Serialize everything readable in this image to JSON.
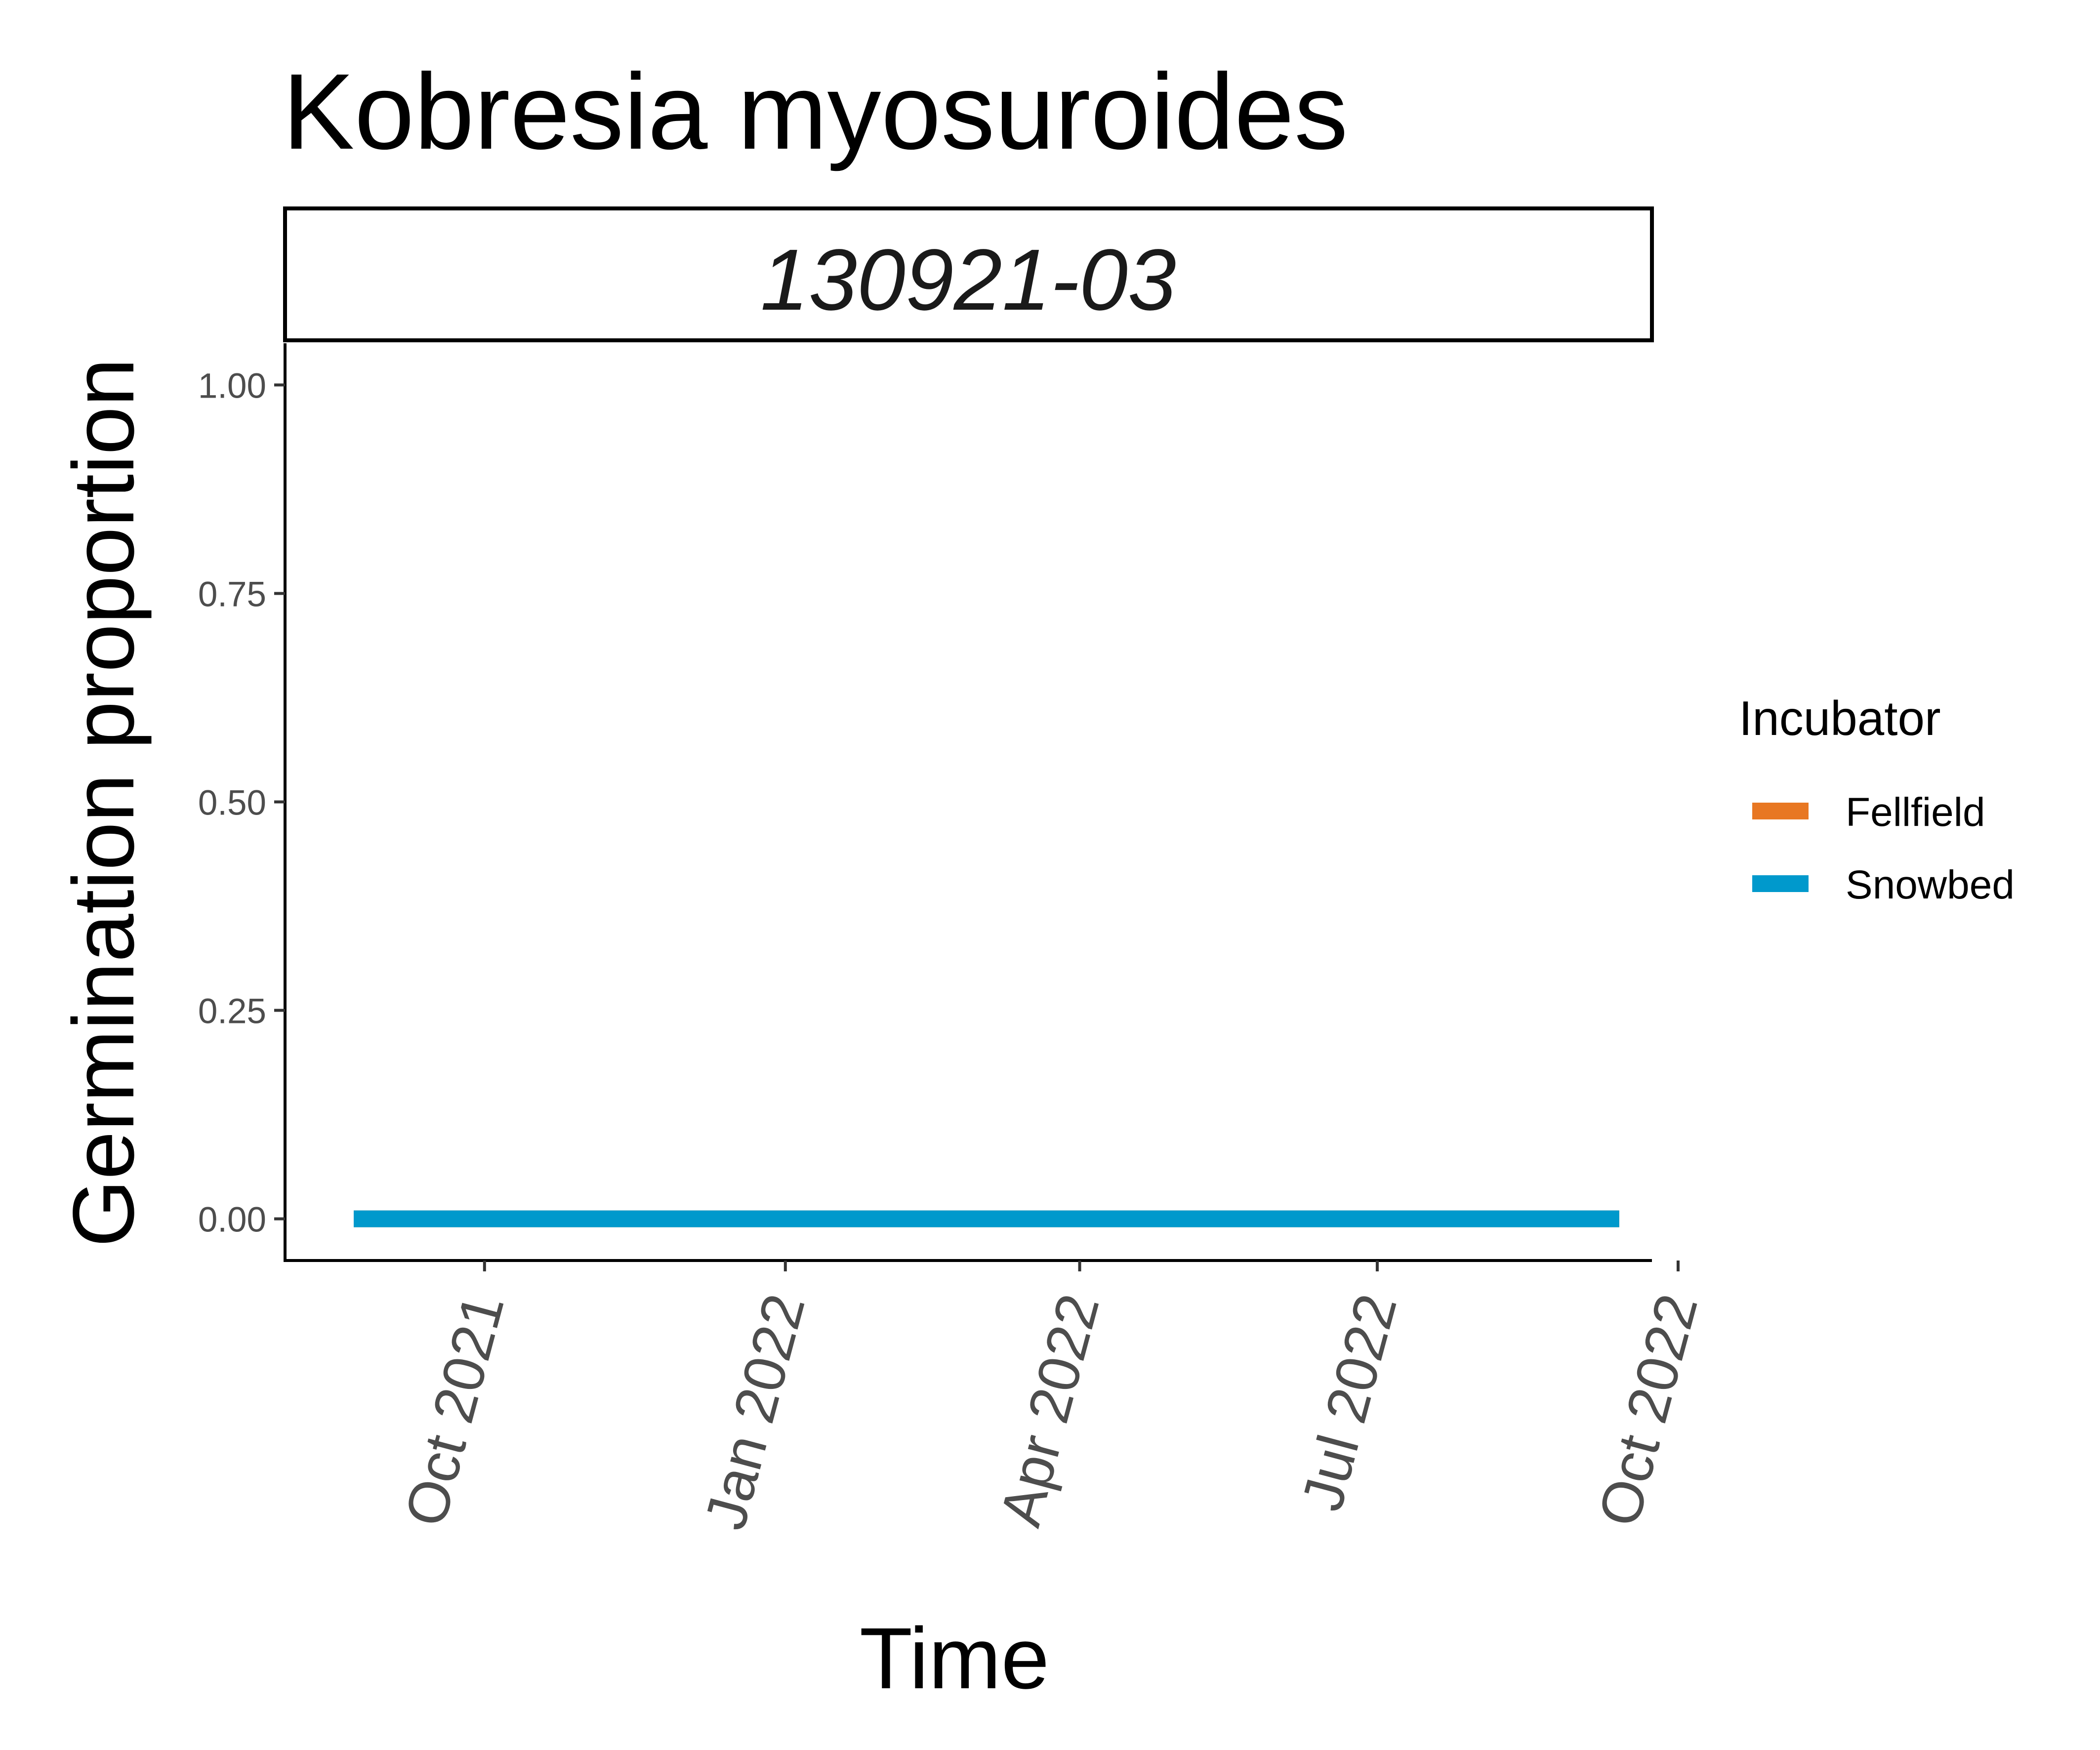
{
  "chart_data": {
    "type": "line",
    "title": "Kobresia myosuroides",
    "facet_label": "130921-03",
    "xlabel": "Time",
    "ylabel": "Germination proportion",
    "x_range": [
      "2021-08-01",
      "2022-09-23"
    ],
    "ylim": [
      -0.05,
      1.05
    ],
    "y_ticks": [
      0.0,
      0.25,
      0.5,
      0.75,
      1.0
    ],
    "y_tick_labels": [
      "0.00",
      "0.25",
      "0.50",
      "0.75",
      "1.00"
    ],
    "x_ticks": [
      {
        "date": "2021-10-01",
        "label": "Oct 2021"
      },
      {
        "date": "2022-01-01",
        "label": "Jan 2022"
      },
      {
        "date": "2022-04-01",
        "label": "Apr 2022"
      },
      {
        "date": "2022-07-01",
        "label": "Jul 2022"
      },
      {
        "date": "2022-10-01",
        "label": "Oct 2022"
      }
    ],
    "grid": false,
    "legend": {
      "title": "Incubator",
      "position": "right",
      "entries": [
        {
          "label": "Fellfield",
          "color": "#E87722"
        },
        {
          "label": "Snowbed",
          "color": "#0099CC"
        }
      ]
    },
    "series": [
      {
        "name": "Fellfield",
        "color": "#E87722",
        "points": [
          {
            "x": "2021-08-22",
            "y": 0
          },
          {
            "x": "2022-09-13",
            "y": 0
          }
        ]
      },
      {
        "name": "Snowbed",
        "color": "#0099CC",
        "points": [
          {
            "x": "2021-08-22",
            "y": 0
          },
          {
            "x": "2022-09-13",
            "y": 0
          }
        ]
      }
    ]
  }
}
